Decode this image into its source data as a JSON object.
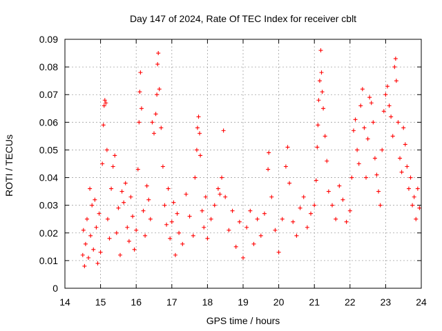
{
  "chart_data": {
    "type": "scatter",
    "title": "Day 147 of 2024, Rate Of TEC Index for receiver cblt",
    "xlabel": "GPS time / hours",
    "ylabel": "ROTI / TECUs",
    "xlim": [
      14,
      24
    ],
    "ylim": [
      0,
      0.09
    ],
    "xticks": [
      "14",
      "15",
      "16",
      "17",
      "18",
      "19",
      "20",
      "21",
      "22",
      "23",
      "24"
    ],
    "yticks": [
      "0",
      "0.01",
      "0.02",
      "0.03",
      "0.04",
      "0.05",
      "0.06",
      "0.07",
      "0.08",
      "0.09"
    ],
    "grid": true,
    "marker": "+",
    "color": "#ff0000",
    "series": [
      {
        "name": "ROTI",
        "points": [
          [
            14.5,
            0.012
          ],
          [
            14.52,
            0.021
          ],
          [
            14.55,
            0.008
          ],
          [
            14.58,
            0.016
          ],
          [
            14.62,
            0.025
          ],
          [
            14.66,
            0.011
          ],
          [
            14.7,
            0.036
          ],
          [
            14.72,
            0.019
          ],
          [
            14.76,
            0.03
          ],
          [
            14.8,
            0.014
          ],
          [
            14.84,
            0.032
          ],
          [
            14.88,
            0.022
          ],
          [
            14.92,
            0.009
          ],
          [
            14.96,
            0.027
          ],
          [
            15.0,
            0.013
          ],
          [
            15.05,
            0.045
          ],
          [
            15.08,
            0.059
          ],
          [
            15.1,
            0.066
          ],
          [
            15.12,
            0.068
          ],
          [
            15.15,
            0.067
          ],
          [
            15.18,
            0.05
          ],
          [
            15.2,
            0.025
          ],
          [
            15.25,
            0.018
          ],
          [
            15.3,
            0.036
          ],
          [
            15.35,
            0.044
          ],
          [
            15.4,
            0.048
          ],
          [
            15.45,
            0.02
          ],
          [
            15.5,
            0.029
          ],
          [
            15.55,
            0.012
          ],
          [
            15.6,
            0.035
          ],
          [
            15.65,
            0.031
          ],
          [
            15.7,
            0.038
          ],
          [
            15.75,
            0.022
          ],
          [
            15.8,
            0.017
          ],
          [
            15.85,
            0.033
          ],
          [
            15.9,
            0.026
          ],
          [
            15.95,
            0.014
          ],
          [
            16.0,
            0.021
          ],
          [
            16.05,
            0.043
          ],
          [
            16.08,
            0.06
          ],
          [
            16.1,
            0.071
          ],
          [
            16.12,
            0.078
          ],
          [
            16.15,
            0.065
          ],
          [
            16.2,
            0.028
          ],
          [
            16.25,
            0.019
          ],
          [
            16.3,
            0.037
          ],
          [
            16.35,
            0.032
          ],
          [
            16.4,
            0.025
          ],
          [
            16.45,
            0.06
          ],
          [
            16.5,
            0.056
          ],
          [
            16.55,
            0.063
          ],
          [
            16.58,
            0.07
          ],
          [
            16.6,
            0.081
          ],
          [
            16.62,
            0.085
          ],
          [
            16.65,
            0.072
          ],
          [
            16.7,
            0.058
          ],
          [
            16.75,
            0.044
          ],
          [
            16.8,
            0.03
          ],
          [
            16.85,
            0.023
          ],
          [
            16.9,
            0.036
          ],
          [
            16.95,
            0.018
          ],
          [
            17.0,
            0.024
          ],
          [
            17.05,
            0.031
          ],
          [
            17.1,
            0.012
          ],
          [
            17.15,
            0.027
          ],
          [
            17.2,
            0.02
          ],
          [
            17.3,
            0.016
          ],
          [
            17.4,
            0.034
          ],
          [
            17.5,
            0.026
          ],
          [
            17.6,
            0.019
          ],
          [
            17.65,
            0.04
          ],
          [
            17.7,
            0.05
          ],
          [
            17.72,
            0.058
          ],
          [
            17.75,
            0.062
          ],
          [
            17.78,
            0.056
          ],
          [
            17.8,
            0.048
          ],
          [
            17.85,
            0.028
          ],
          [
            17.9,
            0.022
          ],
          [
            17.95,
            0.033
          ],
          [
            18.0,
            0.018
          ],
          [
            18.1,
            0.025
          ],
          [
            18.2,
            0.03
          ],
          [
            18.3,
            0.036
          ],
          [
            18.35,
            0.034
          ],
          [
            18.4,
            0.04
          ],
          [
            18.45,
            0.057
          ],
          [
            18.5,
            0.033
          ],
          [
            18.6,
            0.021
          ],
          [
            18.7,
            0.028
          ],
          [
            18.8,
            0.015
          ],
          [
            18.9,
            0.024
          ],
          [
            19.0,
            0.011
          ],
          [
            19.1,
            0.022
          ],
          [
            19.2,
            0.028
          ],
          [
            19.3,
            0.016
          ],
          [
            19.4,
            0.025
          ],
          [
            19.5,
            0.019
          ],
          [
            19.6,
            0.027
          ],
          [
            19.7,
            0.043
          ],
          [
            19.72,
            0.049
          ],
          [
            19.8,
            0.033
          ],
          [
            19.9,
            0.021
          ],
          [
            20.0,
            0.013
          ],
          [
            20.1,
            0.025
          ],
          [
            20.2,
            0.044
          ],
          [
            20.25,
            0.051
          ],
          [
            20.3,
            0.038
          ],
          [
            20.4,
            0.024
          ],
          [
            20.5,
            0.019
          ],
          [
            20.6,
            0.029
          ],
          [
            20.7,
            0.033
          ],
          [
            20.8,
            0.022
          ],
          [
            20.9,
            0.027
          ],
          [
            21.0,
            0.03
          ],
          [
            21.05,
            0.039
          ],
          [
            21.08,
            0.051
          ],
          [
            21.1,
            0.059
          ],
          [
            21.12,
            0.068
          ],
          [
            21.15,
            0.075
          ],
          [
            21.18,
            0.086
          ],
          [
            21.2,
            0.078
          ],
          [
            21.22,
            0.071
          ],
          [
            21.25,
            0.065
          ],
          [
            21.3,
            0.055
          ],
          [
            21.35,
            0.046
          ],
          [
            21.4,
            0.035
          ],
          [
            21.5,
            0.03
          ],
          [
            21.6,
            0.025
          ],
          [
            21.7,
            0.037
          ],
          [
            21.8,
            0.032
          ],
          [
            21.9,
            0.024
          ],
          [
            22.0,
            0.028
          ],
          [
            22.05,
            0.04
          ],
          [
            22.1,
            0.057
          ],
          [
            22.15,
            0.061
          ],
          [
            22.2,
            0.05
          ],
          [
            22.25,
            0.045
          ],
          [
            22.3,
            0.066
          ],
          [
            22.35,
            0.072
          ],
          [
            22.4,
            0.058
          ],
          [
            22.45,
            0.04
          ],
          [
            22.5,
            0.054
          ],
          [
            22.55,
            0.069
          ],
          [
            22.6,
            0.067
          ],
          [
            22.65,
            0.06
          ],
          [
            22.7,
            0.047
          ],
          [
            22.75,
            0.041
          ],
          [
            22.8,
            0.035
          ],
          [
            22.85,
            0.03
          ],
          [
            22.9,
            0.05
          ],
          [
            22.95,
            0.064
          ],
          [
            23.0,
            0.07
          ],
          [
            23.05,
            0.073
          ],
          [
            23.1,
            0.066
          ],
          [
            23.15,
            0.062
          ],
          [
            23.2,
            0.055
          ],
          [
            23.25,
            0.08
          ],
          [
            23.28,
            0.083
          ],
          [
            23.3,
            0.075
          ],
          [
            23.35,
            0.06
          ],
          [
            23.4,
            0.047
          ],
          [
            23.45,
            0.042
          ],
          [
            23.5,
            0.058
          ],
          [
            23.55,
            0.052
          ],
          [
            23.6,
            0.044
          ],
          [
            23.65,
            0.036
          ],
          [
            23.7,
            0.04
          ],
          [
            23.75,
            0.03
          ],
          [
            23.8,
            0.033
          ],
          [
            23.85,
            0.025
          ],
          [
            23.9,
            0.036
          ],
          [
            23.95,
            0.029
          ]
        ]
      }
    ]
  }
}
